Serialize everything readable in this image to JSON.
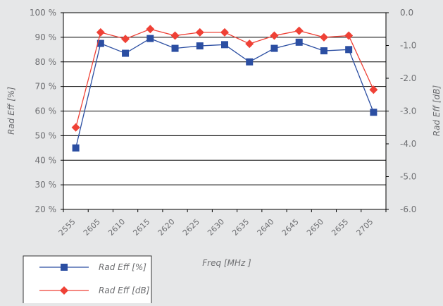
{
  "chart_data": {
    "type": "line",
    "categories": [
      "2555",
      "2605",
      "2610",
      "2615",
      "2620",
      "2625",
      "2630",
      "2635",
      "2640",
      "2645",
      "2650",
      "2655",
      "2705"
    ],
    "xlabel": "Freq [MHz ]",
    "ylabel_left": "Rad Eff [%]",
    "ylabel_right": "Rad Eff [dB]",
    "y_left": {
      "lim": [
        20,
        100
      ],
      "ticks": [
        20,
        30,
        40,
        50,
        60,
        70,
        80,
        90,
        100
      ],
      "tick_labels": [
        "20 %",
        "30 %",
        "40 %",
        "50 %",
        "60 %",
        "70 %",
        "80 %",
        "90 %",
        "100 %"
      ]
    },
    "y_right": {
      "lim": [
        -6.0,
        0.0
      ],
      "ticks": [
        0.0,
        -1.0,
        -2.0,
        -3.0,
        -4.0,
        -5.0,
        -6.0
      ],
      "tick_labels": [
        "0.0",
        "-1.0",
        "-2.0",
        "-3.0",
        "-4.0",
        "-5.0",
        "-6.0"
      ]
    },
    "grid": "horizontal",
    "legend_position": "bottom-left",
    "series": [
      {
        "name": "Rad Eff [%]",
        "axis": "left",
        "marker": "square",
        "color": "#2b4ea2",
        "values": [
          45,
          87.5,
          83.5,
          89.5,
          85.5,
          86.5,
          87,
          80,
          85.5,
          88,
          84.5,
          85,
          59.5
        ]
      },
      {
        "name": "Rad Eff [dB]",
        "axis": "right",
        "marker": "diamond",
        "color": "#ef4136",
        "values": [
          -3.5,
          -0.6,
          -0.8,
          -0.5,
          -0.7,
          -0.6,
          -0.6,
          -0.95,
          -0.7,
          -0.55,
          -0.75,
          -0.7,
          -2.35
        ]
      }
    ]
  }
}
